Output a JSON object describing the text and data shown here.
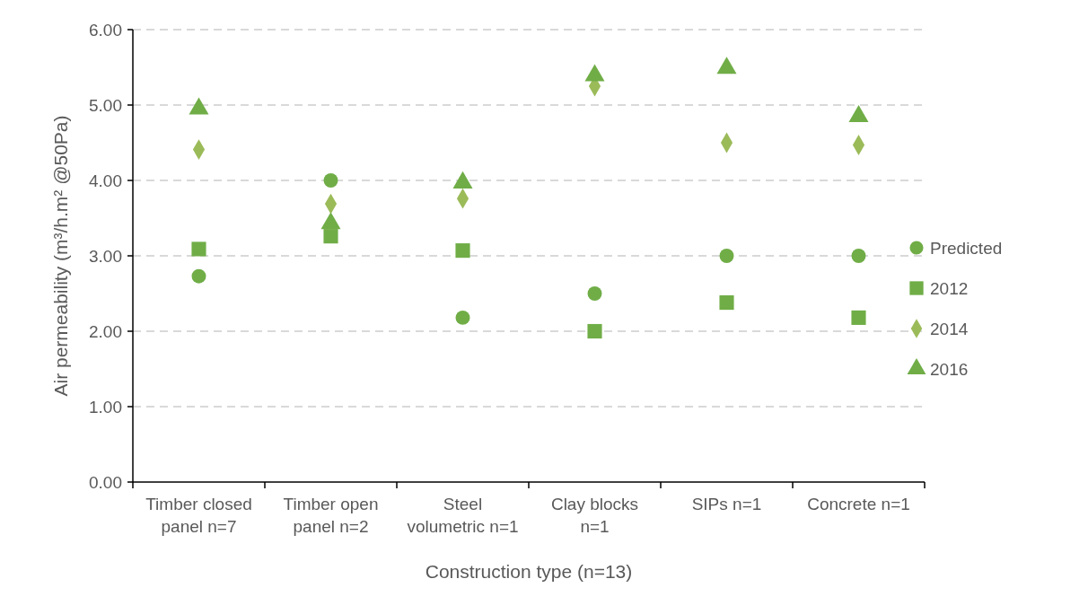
{
  "chart_data": {
    "type": "scatter",
    "xlabel": "Construction type (n=13)",
    "ylabel": "Air permeability (m³/h.m² @50Pa)",
    "categories": [
      "Timber closed panel n=7",
      "Timber open panel n=2",
      "Steel volumetric n=1",
      "Clay blocks n=1",
      "SIPs n=1",
      "Concrete n=1"
    ],
    "series": [
      {
        "name": "Predicted",
        "color": "#70ad47",
        "marker": "circle",
        "values": [
          2.73,
          4.0,
          2.18,
          2.5,
          3.0,
          3.0
        ]
      },
      {
        "name": "2012",
        "color": "#70ad47",
        "marker": "square",
        "values": [
          3.09,
          3.26,
          3.07,
          2.0,
          2.38,
          2.18
        ]
      },
      {
        "name": "2014",
        "color": "#9bbb59",
        "marker": "diamond",
        "values": [
          4.41,
          3.69,
          3.76,
          5.25,
          4.5,
          4.47
        ]
      },
      {
        "name": "2016",
        "color": "#70ad47",
        "marker": "triangle",
        "values": [
          4.95,
          3.43,
          3.97,
          5.39,
          5.49,
          4.85
        ]
      }
    ],
    "ylim": [
      0,
      6
    ],
    "yticks": [
      {
        "value": 0,
        "label": "0.00"
      },
      {
        "value": 1,
        "label": "1.00"
      },
      {
        "value": 2,
        "label": "2.00"
      },
      {
        "value": 3,
        "label": "3.00"
      },
      {
        "value": 4,
        "label": "4.00"
      },
      {
        "value": 5,
        "label": "5.00"
      },
      {
        "value": 6,
        "label": "6.00"
      }
    ],
    "grid": "y",
    "legend": "right"
  }
}
